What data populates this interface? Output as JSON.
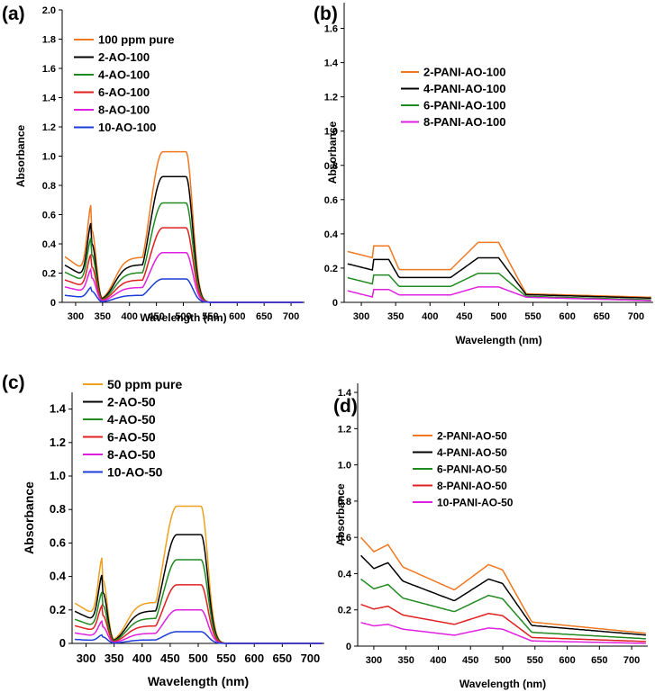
{
  "chart_data": [
    {
      "panel": "(a)",
      "type": "line",
      "xlabel": "Wavelength (nm)",
      "ylabel": "Absorbance",
      "xlim": [
        275,
        725
      ],
      "ylim": [
        0,
        2.0
      ],
      "xticks": [
        300,
        350,
        400,
        450,
        500,
        550,
        600,
        650,
        700
      ],
      "yticks": [
        "0",
        "0.2",
        "0.4",
        "0.6",
        "0.8",
        "1.0",
        "1.2",
        "1.4",
        "1.6",
        "1.8",
        "2.0"
      ],
      "ytick_values": [
        0,
        0.2,
        0.4,
        0.6,
        0.8,
        1.0,
        1.2,
        1.4,
        1.6,
        1.8,
        2.0
      ],
      "legend_position": "top-left",
      "series": [
        {
          "name": "100 ppm pure",
          "color": "#f07820",
          "peak1": 0.65,
          "peak2": 1.03,
          "base": 0.0
        },
        {
          "name": "2-AO-100",
          "color": "#000000",
          "peak1": 0.53,
          "peak2": 0.86,
          "base": 0.0
        },
        {
          "name": "4-AO-100",
          "color": "#208a20",
          "peak1": 0.43,
          "peak2": 0.68,
          "base": 0.0
        },
        {
          "name": "6-AO-100",
          "color": "#e02020",
          "peak1": 0.32,
          "peak2": 0.51,
          "base": 0.0
        },
        {
          "name": "8-AO-100",
          "color": "#e020e0",
          "peak1": 0.22,
          "peak2": 0.34,
          "base": 0.0
        },
        {
          "name": "10-AO-100",
          "color": "#1c3cd8",
          "peak1": 0.1,
          "peak2": 0.16,
          "base": 0.0
        }
      ]
    },
    {
      "panel": "(b)",
      "type": "line",
      "xlabel": "Wavelength (nm)",
      "ylabel": "Absorbance",
      "xlim": [
        275,
        725
      ],
      "ylim": [
        0,
        1.75
      ],
      "xticks": [
        300,
        350,
        400,
        450,
        500,
        550,
        600,
        650,
        700
      ],
      "yticks": [
        "0",
        "0.2",
        "0.4",
        "0.6",
        "0.8",
        "1.0",
        "1.2",
        "1.4",
        "1.6"
      ],
      "ytick_values": [
        0,
        0.2,
        0.4,
        0.6,
        0.8,
        1.0,
        1.2,
        1.4,
        1.6
      ],
      "legend_position": "top-left",
      "series": [
        {
          "name": "2-PANI-AO-100",
          "color": "#f07820",
          "peak1": 0.33,
          "peak2": 0.35,
          "base": 0.03
        },
        {
          "name": "4-PANI-AO-100",
          "color": "#000000",
          "peak1": 0.25,
          "peak2": 0.26,
          "base": 0.025
        },
        {
          "name": "6-PANI-AO-100",
          "color": "#208a20",
          "peak1": 0.16,
          "peak2": 0.17,
          "base": 0.015
        },
        {
          "name": "8-PANI-AO-100",
          "color": "#e020e0",
          "peak1": 0.075,
          "peak2": 0.09,
          "base": 0.01
        }
      ]
    },
    {
      "panel": "(c)",
      "type": "line",
      "xlabel": "Wavelength (nm)",
      "ylabel": "Absorbance",
      "xlim": [
        275,
        725
      ],
      "ylim": [
        0,
        1.5
      ],
      "xticks": [
        300,
        350,
        400,
        450,
        500,
        550,
        600,
        650,
        700
      ],
      "yticks": [
        "0",
        "0.2",
        "0.4",
        "0.6",
        "0.8",
        "1.0",
        "1.2",
        "1.4"
      ],
      "ytick_values": [
        0,
        0.2,
        0.4,
        0.6,
        0.8,
        1.0,
        1.2,
        1.4
      ],
      "legend_position": "top-left",
      "series": [
        {
          "name": "50 ppm pure",
          "color": "#f0a020",
          "peak1": 0.5,
          "peak2": 0.82,
          "base": 0.0
        },
        {
          "name": "2-AO-50",
          "color": "#000000",
          "peak1": 0.4,
          "peak2": 0.65,
          "base": 0.0
        },
        {
          "name": "4-AO-50",
          "color": "#208a20",
          "peak1": 0.3,
          "peak2": 0.5,
          "base": 0.0
        },
        {
          "name": "6-AO-50",
          "color": "#e02020",
          "peak1": 0.22,
          "peak2": 0.35,
          "base": 0.0
        },
        {
          "name": "8-AO-50",
          "color": "#e020e0",
          "peak1": 0.13,
          "peak2": 0.2,
          "base": 0.0
        },
        {
          "name": "10-AO-50",
          "color": "#1c3cd8",
          "peak1": 0.05,
          "peak2": 0.07,
          "base": 0.0
        }
      ]
    },
    {
      "panel": "(d)",
      "type": "line",
      "xlabel": "Wavelength (nm)",
      "ylabel": "Absorbance",
      "xlim": [
        275,
        725
      ],
      "ylim": [
        0,
        1.45
      ],
      "xticks": [
        300,
        350,
        400,
        450,
        500,
        550,
        600,
        650,
        700
      ],
      "yticks": [
        "0",
        "0.2",
        "0.4",
        "0.6",
        "0.8",
        "1.0",
        "1.2",
        "1.4"
      ],
      "ytick_values": [
        0,
        0.2,
        0.4,
        0.6,
        0.8,
        1.0,
        1.2,
        1.4
      ],
      "legend_position": "top-left",
      "series": [
        {
          "name": "2-PANI-AO-50",
          "color": "#f07820",
          "start": 0.6,
          "peak1": 0.56,
          "mid": 0.31,
          "peak2": 0.45,
          "base": 0.07
        },
        {
          "name": "4-PANI-AO-50",
          "color": "#000000",
          "start": 0.5,
          "peak1": 0.46,
          "mid": 0.25,
          "peak2": 0.37,
          "base": 0.06
        },
        {
          "name": "6-PANI-AO-50",
          "color": "#208a20",
          "start": 0.37,
          "peak1": 0.34,
          "mid": 0.19,
          "peak2": 0.28,
          "base": 0.04
        },
        {
          "name": "8-PANI-AO-50",
          "color": "#e02020",
          "start": 0.23,
          "peak1": 0.22,
          "mid": 0.12,
          "peak2": 0.18,
          "base": 0.025
        },
        {
          "name": "10-PANI-AO-50",
          "color": "#e020e0",
          "start": 0.13,
          "peak1": 0.12,
          "mid": 0.06,
          "peak2": 0.1,
          "base": 0.015
        }
      ]
    }
  ]
}
